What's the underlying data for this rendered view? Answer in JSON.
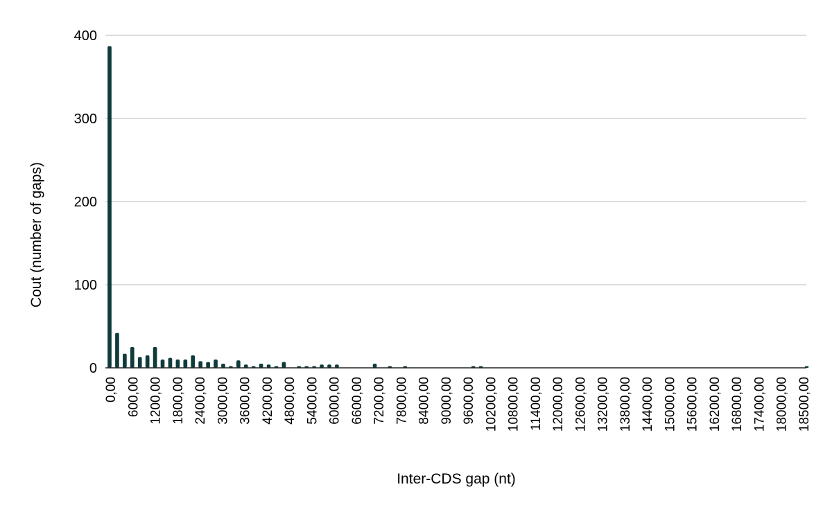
{
  "chart_data": {
    "type": "bar",
    "title": "",
    "xlabel": "Inter-CDS gap (nt)",
    "ylabel": "Cout (number of gaps)",
    "ylim": [
      0,
      400
    ],
    "yticks": [
      0,
      100,
      200,
      300,
      400
    ],
    "grid": true,
    "bar_color": "#0f3b3d",
    "x_tick_labels": [
      "0,00",
      "600,00",
      "1200,00",
      "1800,00",
      "2400,00",
      "3000,00",
      "3600,00",
      "4200,00",
      "4800,00",
      "5400,00",
      "6000,00",
      "6600,00",
      "7200,00",
      "7800,00",
      "8400,00",
      "9000,00",
      "9600,00",
      "10200,00",
      "10800,00",
      "11400,00",
      "12000,00",
      "12600,00",
      "13200,00",
      "13800,00",
      "14400,00",
      "15000,00",
      "15600,00",
      "16200,00",
      "16800,00",
      "17400,00",
      "18000,00",
      "18500,00"
    ],
    "bin_width": 200,
    "bins": [
      {
        "x": 0,
        "count": 387
      },
      {
        "x": 200,
        "count": 42
      },
      {
        "x": 400,
        "count": 17
      },
      {
        "x": 600,
        "count": 25
      },
      {
        "x": 800,
        "count": 13
      },
      {
        "x": 1000,
        "count": 15
      },
      {
        "x": 1200,
        "count": 25
      },
      {
        "x": 1400,
        "count": 10
      },
      {
        "x": 1600,
        "count": 12
      },
      {
        "x": 1800,
        "count": 10
      },
      {
        "x": 2000,
        "count": 10
      },
      {
        "x": 2200,
        "count": 15
      },
      {
        "x": 2400,
        "count": 8
      },
      {
        "x": 2600,
        "count": 7
      },
      {
        "x": 2800,
        "count": 10
      },
      {
        "x": 3000,
        "count": 5
      },
      {
        "x": 3200,
        "count": 2
      },
      {
        "x": 3400,
        "count": 9
      },
      {
        "x": 3600,
        "count": 4
      },
      {
        "x": 3800,
        "count": 2
      },
      {
        "x": 4000,
        "count": 5
      },
      {
        "x": 4200,
        "count": 4
      },
      {
        "x": 4400,
        "count": 2
      },
      {
        "x": 4600,
        "count": 7
      },
      {
        "x": 5000,
        "count": 2
      },
      {
        "x": 5200,
        "count": 2
      },
      {
        "x": 5400,
        "count": 2
      },
      {
        "x": 5600,
        "count": 4
      },
      {
        "x": 5800,
        "count": 4
      },
      {
        "x": 6000,
        "count": 4
      },
      {
        "x": 7000,
        "count": 5
      },
      {
        "x": 7400,
        "count": 2
      },
      {
        "x": 7800,
        "count": 2
      },
      {
        "x": 9600,
        "count": 2
      },
      {
        "x": 9800,
        "count": 2
      },
      {
        "x": 18400,
        "count": 2
      }
    ]
  }
}
